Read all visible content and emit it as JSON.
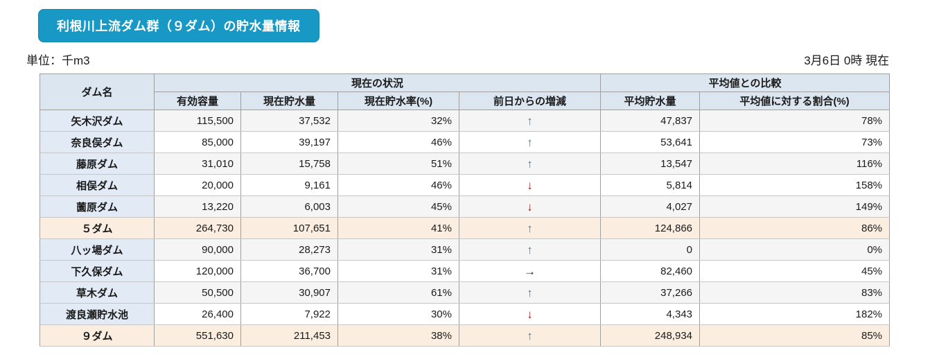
{
  "page": {
    "title": "利根川上流ダム群（９ダム）の貯水量情報",
    "unit_label": "単位：千m3",
    "timestamp": "3月6日 0時 現在"
  },
  "colors": {
    "title_bg": "#1798c5",
    "header_bg": "#dce6f1",
    "name_col_bg": "#e2eaf6",
    "summary_row_bg": "#fbeee0",
    "shade_row_bg": "#f5f5f6"
  },
  "table": {
    "headers": {
      "dam_name": "ダム名",
      "current_group": "現在の状況",
      "comparison_group": "平均値との比較",
      "effective_capacity": "有効容量",
      "current_storage": "現在貯水量",
      "current_rate": "現在貯水率(%)",
      "day_change": "前日からの増減",
      "average_storage": "平均貯水量",
      "ratio_to_average": "平均値に対する割合(%)"
    },
    "trend_icons": {
      "up": "↑",
      "down": "↓",
      "right": "→"
    },
    "trend_colors": {
      "up": "#5f7283",
      "down": "#9e1f1f",
      "right": "#1a1a1a"
    },
    "rows": [
      {
        "name": "矢木沢ダム",
        "effective_capacity": "115,500",
        "current_storage": "37,532",
        "current_rate": "32%",
        "trend": "up",
        "average_storage": "47,837",
        "ratio": "78%",
        "summary": false
      },
      {
        "name": "奈良俣ダム",
        "effective_capacity": "85,000",
        "current_storage": "39,197",
        "current_rate": "46%",
        "trend": "up",
        "average_storage": "53,641",
        "ratio": "73%",
        "summary": false
      },
      {
        "name": "藤原ダム",
        "effective_capacity": "31,010",
        "current_storage": "15,758",
        "current_rate": "51%",
        "trend": "up",
        "average_storage": "13,547",
        "ratio": "116%",
        "summary": false
      },
      {
        "name": "相俣ダム",
        "effective_capacity": "20,000",
        "current_storage": "9,161",
        "current_rate": "46%",
        "trend": "down",
        "average_storage": "5,814",
        "ratio": "158%",
        "summary": false
      },
      {
        "name": "薗原ダム",
        "effective_capacity": "13,220",
        "current_storage": "6,003",
        "current_rate": "45%",
        "trend": "down",
        "average_storage": "4,027",
        "ratio": "149%",
        "summary": false
      },
      {
        "name": "５ダム",
        "effective_capacity": "264,730",
        "current_storage": "107,651",
        "current_rate": "41%",
        "trend": "up",
        "average_storage": "124,866",
        "ratio": "86%",
        "summary": true
      },
      {
        "name": "八ッ場ダム",
        "effective_capacity": "90,000",
        "current_storage": "28,273",
        "current_rate": "31%",
        "trend": "up",
        "average_storage": "0",
        "ratio": "0%",
        "summary": false
      },
      {
        "name": "下久保ダム",
        "effective_capacity": "120,000",
        "current_storage": "36,700",
        "current_rate": "31%",
        "trend": "right",
        "average_storage": "82,460",
        "ratio": "45%",
        "summary": false
      },
      {
        "name": "草木ダム",
        "effective_capacity": "50,500",
        "current_storage": "30,907",
        "current_rate": "61%",
        "trend": "up",
        "average_storage": "37,266",
        "ratio": "83%",
        "summary": false
      },
      {
        "name": "渡良瀬貯水池",
        "effective_capacity": "26,400",
        "current_storage": "7,922",
        "current_rate": "30%",
        "trend": "down",
        "average_storage": "4,343",
        "ratio": "182%",
        "summary": false
      },
      {
        "name": "９ダム",
        "effective_capacity": "551,630",
        "current_storage": "211,453",
        "current_rate": "38%",
        "trend": "up",
        "average_storage": "248,934",
        "ratio": "85%",
        "summary": true
      }
    ]
  }
}
